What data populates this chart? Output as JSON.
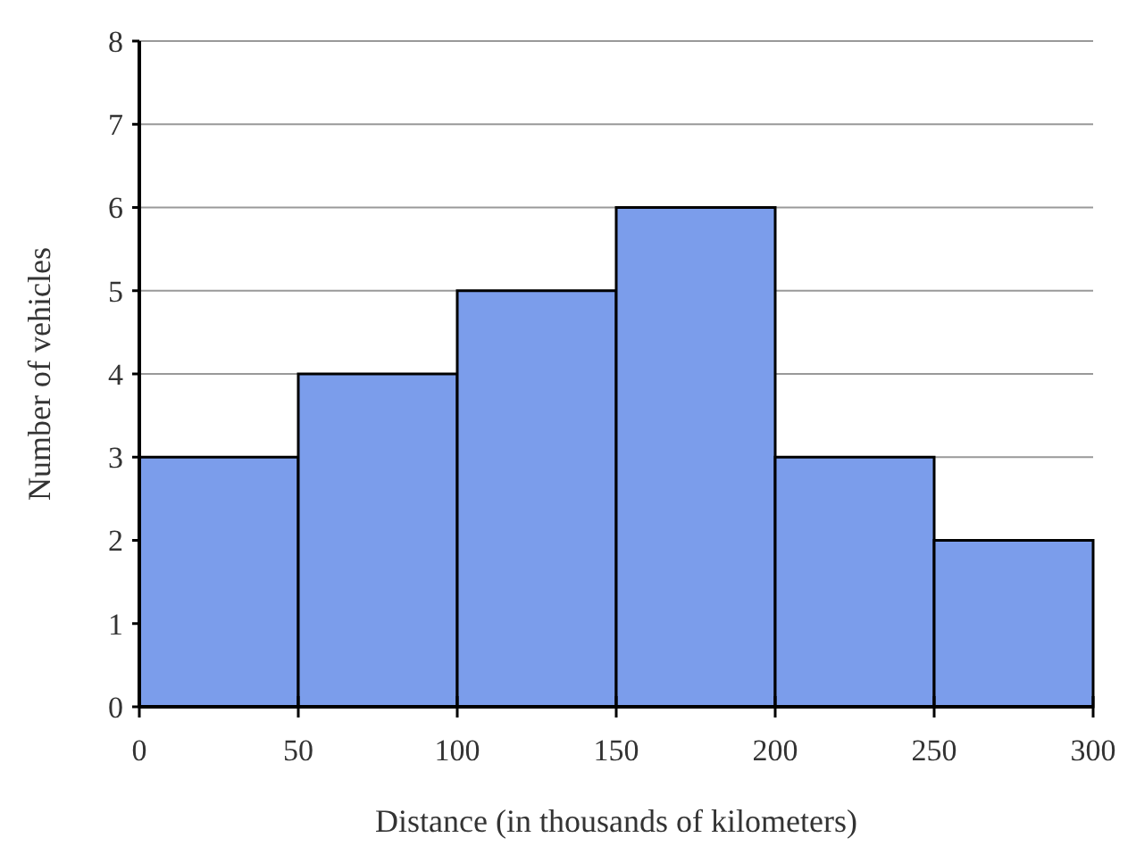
{
  "chart_data": {
    "type": "histogram",
    "xlabel": "Distance (in thousands of kilometers)",
    "ylabel": "Number of vehicles",
    "bins": [
      0,
      50,
      100,
      150,
      200,
      250,
      300
    ],
    "values": [
      3,
      4,
      5,
      6,
      3,
      2
    ],
    "color": "#7b9deb",
    "xlim": [
      0,
      300
    ],
    "xticks": [
      0,
      50,
      100,
      150,
      200,
      250,
      300
    ],
    "ylim": [
      0,
      8
    ],
    "yticks": [
      0,
      1,
      2,
      3,
      4,
      5,
      6,
      7,
      8
    ],
    "grid": "y"
  }
}
